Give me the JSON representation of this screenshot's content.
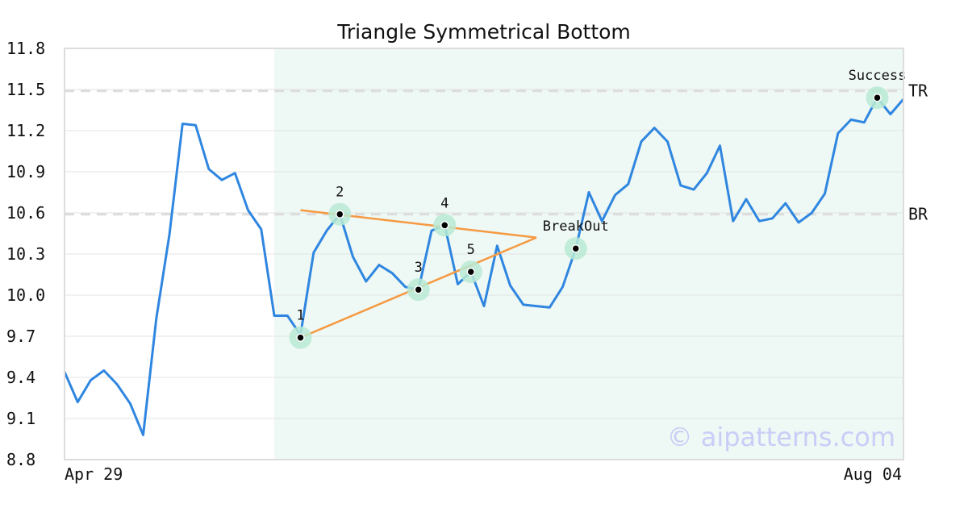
{
  "chart_data": {
    "type": "line",
    "title": "Triangle Symmetrical Bottom",
    "x_tick_labels": [
      "Apr 29",
      "Aug 04"
    ],
    "ylim": [
      8.8,
      11.8
    ],
    "y_ticks": [
      "8.8",
      "9.1",
      "9.4",
      "9.7",
      "10.0",
      "10.3",
      "10.6",
      "10.9",
      "11.2",
      "11.5",
      "11.8"
    ],
    "grid": true,
    "series": [
      {
        "values": [
          9.44,
          9.22,
          9.38,
          9.45,
          9.35,
          9.21,
          8.98,
          9.83,
          10.44,
          11.25,
          11.24,
          10.92,
          10.84,
          10.89,
          10.62,
          10.48,
          9.85,
          9.85,
          9.71,
          10.31,
          10.47,
          10.59,
          10.28,
          10.1,
          10.22,
          10.16,
          10.06,
          10.04,
          10.47,
          10.51,
          10.08,
          10.17,
          9.92,
          10.36,
          10.07,
          9.93,
          9.92,
          9.91,
          10.06,
          10.34,
          10.75,
          10.54,
          10.73,
          10.81,
          11.12,
          11.22,
          11.12,
          10.8,
          10.77,
          10.89,
          11.09,
          10.54,
          10.7,
          10.54,
          10.56,
          10.67,
          10.53,
          10.6,
          10.74,
          11.18,
          11.28,
          11.26,
          11.44,
          11.32,
          11.43
        ],
        "color": "#2f86e0"
      }
    ],
    "shaded_region": {
      "x_start": 16,
      "x_end": 64,
      "color": "#eef8f4"
    },
    "levels": [
      {
        "label": "TR",
        "value": 11.49
      },
      {
        "label": "BR",
        "value": 10.59
      }
    ],
    "trendlines": [
      {
        "from": [
          18,
          9.69
        ],
        "to": [
          36,
          10.42
        ],
        "color": "#f59a42"
      },
      {
        "from": [
          18,
          10.62
        ],
        "to": [
          36,
          10.42
        ],
        "color": "#f59a42"
      }
    ],
    "annotations": [
      {
        "label": "1",
        "x": 18,
        "y": 9.69,
        "pos": "above"
      },
      {
        "label": "2",
        "x": 21,
        "y": 10.59,
        "pos": "above"
      },
      {
        "label": "3",
        "x": 27,
        "y": 10.04,
        "pos": "above"
      },
      {
        "label": "4",
        "x": 29,
        "y": 10.51,
        "pos": "above"
      },
      {
        "label": "5",
        "x": 31,
        "y": 10.17,
        "pos": "above"
      },
      {
        "label": "BreakOut",
        "x": 39,
        "y": 10.34,
        "pos": "above"
      },
      {
        "label": "Success",
        "x": 62,
        "y": 11.44,
        "pos": "above"
      }
    ],
    "watermark": "© aipatterns.com"
  }
}
